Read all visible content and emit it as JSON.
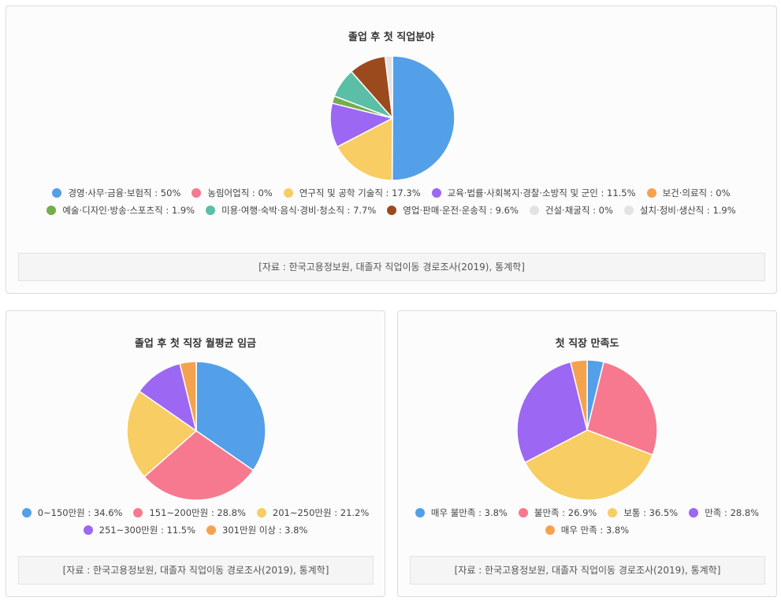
{
  "chart_data": [
    {
      "type": "pie",
      "title": "졸업 후 첫 직업분야",
      "source": "[자료 : 한국고용정보원, 대졸자 직업이동 경로조사(2019), 통계학]",
      "slices": [
        {
          "label": "경영·사무·금융·보험직 : 50%",
          "value": 50,
          "color": "#539fe8"
        },
        {
          "label": "농림어업직 : 0%",
          "value": 0,
          "color": "#f7798f"
        },
        {
          "label": "연구직 및 공학 기술직 : 17.3%",
          "value": 17.3,
          "color": "#f7cd64"
        },
        {
          "label": "교육·법률·사회복지·경찰·소방직 및 군인 : 11.5%",
          "value": 11.5,
          "color": "#9c67f2"
        },
        {
          "label": "보건·의료직 : 0%",
          "value": 0,
          "color": "#f5a24f"
        },
        {
          "label": "예술·디자인·방송·스포츠직 : 1.9%",
          "value": 1.9,
          "color": "#75ad4e"
        },
        {
          "label": "미용·여행·숙박·음식·경비·청소직 : 7.7%",
          "value": 7.7,
          "color": "#5bbea6"
        },
        {
          "label": "영업·판매·운전·운송직 : 9.6%",
          "value": 9.6,
          "color": "#9b4a1e"
        },
        {
          "label": "건설·채굴직 : 0%",
          "value": 0,
          "color": "#e3e3e3"
        },
        {
          "label": "설치·정비·생산직 : 1.9%",
          "value": 1.9,
          "color": "#e3e3e3"
        }
      ]
    },
    {
      "type": "pie",
      "title": "졸업 후 첫 직장 월평균 임금",
      "source": "[자료 : 한국고용정보원, 대졸자 직업이동 경로조사(2019), 통계학]",
      "slices": [
        {
          "label": "0~150만원 : 34.6%",
          "value": 34.6,
          "color": "#539fe8"
        },
        {
          "label": "151~200만원 : 28.8%",
          "value": 28.8,
          "color": "#f7798f"
        },
        {
          "label": "201~250만원 : 21.2%",
          "value": 21.2,
          "color": "#f7cd64"
        },
        {
          "label": "251~300만원 : 11.5%",
          "value": 11.5,
          "color": "#9c67f2"
        },
        {
          "label": "301만원 이상 : 3.8%",
          "value": 3.8,
          "color": "#f5a24f"
        }
      ]
    },
    {
      "type": "pie",
      "title": "첫 직장 만족도",
      "source": "[자료 : 한국고용정보원, 대졸자 직업이동 경로조사(2019), 통계학]",
      "slices": [
        {
          "label": "매우 불만족 : 3.8%",
          "value": 3.8,
          "color": "#539fe8"
        },
        {
          "label": "불만족 : 26.9%",
          "value": 26.9,
          "color": "#f7798f"
        },
        {
          "label": "보통 : 36.5%",
          "value": 36.5,
          "color": "#f7cd64"
        },
        {
          "label": "만족 : 28.8%",
          "value": 28.8,
          "color": "#9c67f2"
        },
        {
          "label": "매우 만족 : 3.8%",
          "value": 3.8,
          "color": "#f5a24f"
        }
      ]
    }
  ]
}
